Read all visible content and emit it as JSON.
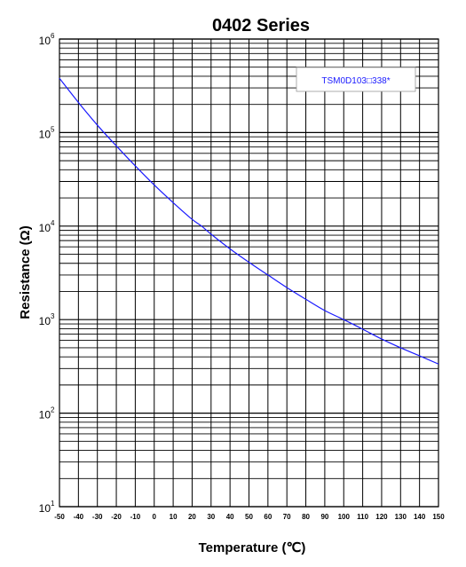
{
  "chart_data": {
    "type": "line",
    "title": "0402 Series",
    "xlabel": "Temperature (℃)",
    "ylabel": "Resistance (Ω)",
    "x_ticks": [
      -50,
      -40,
      -30,
      -20,
      -10,
      0,
      10,
      20,
      30,
      40,
      50,
      60,
      70,
      80,
      90,
      100,
      110,
      120,
      130,
      140,
      150
    ],
    "xlim": [
      -50,
      150
    ],
    "ylim": [
      10,
      1000000
    ],
    "y_scale": "log",
    "y_ticks": [
      {
        "base": "10",
        "exp": "1",
        "value": 10
      },
      {
        "base": "10",
        "exp": "2",
        "value": 100
      },
      {
        "base": "10",
        "exp": "3",
        "value": 1000
      },
      {
        "base": "10",
        "exp": "4",
        "value": 10000
      },
      {
        "base": "10",
        "exp": "5",
        "value": 100000
      },
      {
        "base": "10",
        "exp": "6",
        "value": 1000000
      }
    ],
    "grid": true,
    "legend_position": "top-right",
    "series": [
      {
        "name": "TSM0D103□338*",
        "color": "#1a1aff",
        "x": [
          -50,
          -40,
          -30,
          -20,
          -10,
          0,
          10,
          20,
          25,
          30,
          40,
          50,
          60,
          70,
          80,
          90,
          100,
          110,
          120,
          130,
          140,
          150
        ],
        "y": [
          380000,
          210000,
          120000,
          72000,
          44000,
          27500,
          17800,
          11800,
          10000,
          8200,
          5700,
          4100,
          3000,
          2200,
          1650,
          1250,
          1000,
          790,
          620,
          500,
          410,
          335
        ]
      }
    ]
  }
}
